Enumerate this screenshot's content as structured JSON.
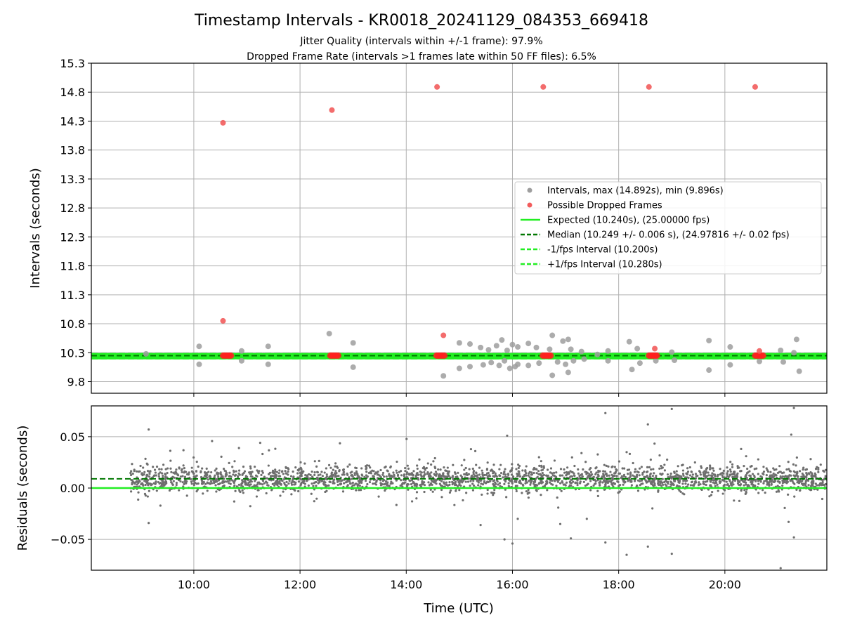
{
  "chart_data": {
    "title": "Timestamp Intervals - KR0018_20241129_084353_669418",
    "subtitle_lines": [
      "Jitter Quality (intervals within +/-1 frame): 97.9%",
      "Dropped Frame Rate (intervals >1 frames late within 50 FF files): 6.5%"
    ],
    "xlabel": "Time (UTC)",
    "x_range_hours": [
      8.07,
      21.92
    ],
    "x_ticks": [
      {
        "value": 10,
        "label": "10:00"
      },
      {
        "value": 12,
        "label": "12:00"
      },
      {
        "value": 14,
        "label": "14:00"
      },
      {
        "value": 16,
        "label": "16:00"
      },
      {
        "value": 18,
        "label": "18:00"
      },
      {
        "value": 20,
        "label": "20:00"
      }
    ],
    "grid": true,
    "top": {
      "type": "scatter",
      "ylabel": "Intervals (seconds)",
      "ylim": [
        9.6,
        15.3
      ],
      "y_ticks": [
        {
          "value": 9.8,
          "label": "9.8"
        },
        {
          "value": 10.3,
          "label": "10.3"
        },
        {
          "value": 10.8,
          "label": "10.8"
        },
        {
          "value": 11.3,
          "label": "11.3"
        },
        {
          "value": 11.8,
          "label": "11.8"
        },
        {
          "value": 12.3,
          "label": "12.3"
        },
        {
          "value": 12.8,
          "label": "12.8"
        },
        {
          "value": 13.3,
          "label": "13.3"
        },
        {
          "value": 13.8,
          "label": "13.8"
        },
        {
          "value": 14.3,
          "label": "14.3"
        },
        {
          "value": 14.8,
          "label": "14.8"
        },
        {
          "value": 15.3,
          "label": "15.3"
        }
      ],
      "legend_position": "center-right",
      "legend": [
        {
          "label": "Intervals, max (14.892s), min (9.896s)",
          "marker": "dot",
          "color": "#9e9e9e"
        },
        {
          "label": "Possible Dropped Frames",
          "marker": "dot",
          "color": "#f25c5c"
        },
        {
          "label": "Expected (10.240s), (25.00000 fps)",
          "marker": "solid",
          "color": "#22ee22"
        },
        {
          "label": "Median (10.249 +/- 0.006 s), (24.97816 +/- 0.02 fps)",
          "marker": "dashed",
          "color": "#007700"
        },
        {
          "label": "-1/fps Interval (10.200s)",
          "marker": "dashed",
          "color": "#22ee22"
        },
        {
          "label": "+1/fps Interval (10.280s)",
          "marker": "dashed",
          "color": "#22ee22"
        }
      ],
      "reference_lines": {
        "expected": 10.24,
        "median": 10.249,
        "minus_one_frame": 10.2,
        "plus_one_frame": 10.28
      },
      "baseline_range_hours": [
        8.8,
        21.92
      ],
      "intervals_outliers": [
        {
          "x": 9.1,
          "y": 10.28
        },
        {
          "x": 10.1,
          "y": 10.41
        },
        {
          "x": 10.1,
          "y": 10.1
        },
        {
          "x": 10.9,
          "y": 10.33
        },
        {
          "x": 10.9,
          "y": 10.16
        },
        {
          "x": 11.4,
          "y": 10.41
        },
        {
          "x": 11.4,
          "y": 10.1
        },
        {
          "x": 12.55,
          "y": 10.63
        },
        {
          "x": 13.0,
          "y": 10.47
        },
        {
          "x": 13.0,
          "y": 10.05
        },
        {
          "x": 14.7,
          "y": 9.9
        },
        {
          "x": 15.0,
          "y": 10.47
        },
        {
          "x": 15.0,
          "y": 10.03
        },
        {
          "x": 15.2,
          "y": 10.45
        },
        {
          "x": 15.2,
          "y": 10.06
        },
        {
          "x": 15.4,
          "y": 10.39
        },
        {
          "x": 15.45,
          "y": 10.09
        },
        {
          "x": 15.55,
          "y": 10.35
        },
        {
          "x": 15.6,
          "y": 10.13
        },
        {
          "x": 15.7,
          "y": 10.42
        },
        {
          "x": 15.75,
          "y": 10.08
        },
        {
          "x": 15.8,
          "y": 10.52
        },
        {
          "x": 15.85,
          "y": 10.16
        },
        {
          "x": 15.9,
          "y": 10.34
        },
        {
          "x": 15.95,
          "y": 10.03
        },
        {
          "x": 16.0,
          "y": 10.44
        },
        {
          "x": 16.05,
          "y": 10.06
        },
        {
          "x": 16.1,
          "y": 10.4
        },
        {
          "x": 16.1,
          "y": 10.1
        },
        {
          "x": 16.3,
          "y": 10.46
        },
        {
          "x": 16.3,
          "y": 10.08
        },
        {
          "x": 16.45,
          "y": 10.39
        },
        {
          "x": 16.5,
          "y": 10.12
        },
        {
          "x": 16.7,
          "y": 10.36
        },
        {
          "x": 16.75,
          "y": 10.6
        },
        {
          "x": 16.75,
          "y": 9.91
        },
        {
          "x": 16.85,
          "y": 10.14
        },
        {
          "x": 16.95,
          "y": 10.5
        },
        {
          "x": 17.0,
          "y": 10.1
        },
        {
          "x": 17.05,
          "y": 10.53
        },
        {
          "x": 17.05,
          "y": 9.96
        },
        {
          "x": 17.1,
          "y": 10.36
        },
        {
          "x": 17.15,
          "y": 10.16
        },
        {
          "x": 17.3,
          "y": 10.32
        },
        {
          "x": 17.35,
          "y": 10.19
        },
        {
          "x": 17.6,
          "y": 10.27
        },
        {
          "x": 17.8,
          "y": 10.33
        },
        {
          "x": 17.8,
          "y": 10.16
        },
        {
          "x": 18.2,
          "y": 10.49
        },
        {
          "x": 18.25,
          "y": 10.01
        },
        {
          "x": 18.35,
          "y": 10.37
        },
        {
          "x": 18.4,
          "y": 10.12
        },
        {
          "x": 18.7,
          "y": 10.16
        },
        {
          "x": 19.0,
          "y": 10.31
        },
        {
          "x": 19.05,
          "y": 10.17
        },
        {
          "x": 19.7,
          "y": 10.51
        },
        {
          "x": 19.7,
          "y": 10.0
        },
        {
          "x": 20.1,
          "y": 10.4
        },
        {
          "x": 20.1,
          "y": 10.09
        },
        {
          "x": 20.65,
          "y": 10.15
        },
        {
          "x": 21.05,
          "y": 10.34
        },
        {
          "x": 21.1,
          "y": 10.14
        },
        {
          "x": 21.3,
          "y": 10.3
        },
        {
          "x": 21.35,
          "y": 10.53
        },
        {
          "x": 21.4,
          "y": 9.98
        }
      ],
      "dropped_frames": [
        {
          "x": 10.55,
          "y": 14.27
        },
        {
          "x": 10.55,
          "y": 10.85
        },
        {
          "x": 12.6,
          "y": 14.49
        },
        {
          "x": 14.58,
          "y": 14.89
        },
        {
          "x": 14.7,
          "y": 10.6
        },
        {
          "x": 16.58,
          "y": 14.89
        },
        {
          "x": 18.57,
          "y": 14.89
        },
        {
          "x": 18.68,
          "y": 10.37
        },
        {
          "x": 20.57,
          "y": 14.89
        },
        {
          "x": 20.65,
          "y": 10.33
        }
      ],
      "dropped_frame_clusters": [
        {
          "x_start": 10.55,
          "x_end": 10.72,
          "y": 10.25
        },
        {
          "x_start": 12.57,
          "x_end": 12.72,
          "y": 10.25
        },
        {
          "x_start": 14.57,
          "x_end": 14.72,
          "y": 10.25
        },
        {
          "x_start": 16.57,
          "x_end": 16.72,
          "y": 10.25
        },
        {
          "x_start": 18.57,
          "x_end": 18.72,
          "y": 10.25
        },
        {
          "x_start": 20.57,
          "x_end": 20.72,
          "y": 10.25
        }
      ]
    },
    "bottom": {
      "type": "scatter",
      "ylabel": "Residuals (seconds)",
      "ylim": [
        -0.08,
        0.08
      ],
      "y_ticks": [
        {
          "value": 0.05,
          "label": "0.05"
        },
        {
          "value": 0.0,
          "label": "0.00"
        },
        {
          "value": -0.05,
          "label": "−0.05"
        }
      ],
      "zero_line": 0.0,
      "median_line": 0.009,
      "band_range_hours": [
        8.8,
        21.92
      ],
      "band_center": 0.009,
      "band_spread": 0.006,
      "outliers": [
        {
          "x": 9.15,
          "y": 0.057
        },
        {
          "x": 9.15,
          "y": -0.034
        },
        {
          "x": 10.85,
          "y": 0.039
        },
        {
          "x": 11.25,
          "y": 0.044
        },
        {
          "x": 15.3,
          "y": 0.036
        },
        {
          "x": 15.4,
          "y": -0.036
        },
        {
          "x": 15.85,
          "y": -0.05
        },
        {
          "x": 15.9,
          "y": 0.051
        },
        {
          "x": 16.0,
          "y": -0.054
        },
        {
          "x": 16.1,
          "y": -0.03
        },
        {
          "x": 16.5,
          "y": 0.03
        },
        {
          "x": 16.9,
          "y": -0.035
        },
        {
          "x": 17.1,
          "y": -0.049
        },
        {
          "x": 17.3,
          "y": 0.034
        },
        {
          "x": 17.4,
          "y": -0.03
        },
        {
          "x": 17.75,
          "y": 0.073
        },
        {
          "x": 17.75,
          "y": -0.053
        },
        {
          "x": 18.15,
          "y": 0.035
        },
        {
          "x": 18.15,
          "y": -0.065
        },
        {
          "x": 18.55,
          "y": 0.062
        },
        {
          "x": 18.55,
          "y": -0.057
        },
        {
          "x": 19.0,
          "y": 0.077
        },
        {
          "x": 19.0,
          "y": -0.064
        },
        {
          "x": 20.4,
          "y": 0.031
        },
        {
          "x": 21.05,
          "y": -0.078
        },
        {
          "x": 21.2,
          "y": -0.033
        },
        {
          "x": 21.25,
          "y": 0.052
        },
        {
          "x": 21.3,
          "y": 0.078
        },
        {
          "x": 21.3,
          "y": -0.048
        }
      ]
    }
  }
}
